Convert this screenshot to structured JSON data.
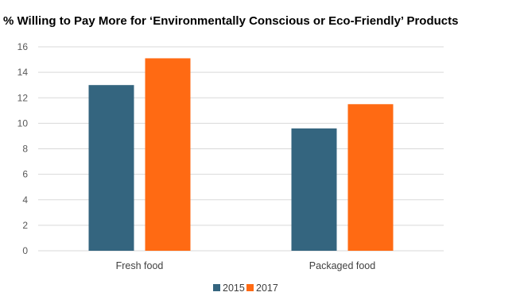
{
  "chart_data": {
    "type": "bar",
    "title": "",
    "subtitle": "% Willing to Pay More for ‘Environmentally Conscious or Eco-Friendly’ Products",
    "categories": [
      "Fresh food",
      "Packaged food"
    ],
    "series": [
      {
        "name": "2015",
        "values": [
          13.0,
          9.6
        ],
        "color": "#34657F"
      },
      {
        "name": "2017",
        "values": [
          15.1,
          11.5
        ],
        "color": "#FF6A13"
      }
    ],
    "ylim": [
      0,
      16
    ],
    "yticks": [
      "0",
      "2",
      "4",
      "6",
      "8",
      "10",
      "12",
      "14",
      "16"
    ],
    "grid": true,
    "legend": "bottom"
  }
}
